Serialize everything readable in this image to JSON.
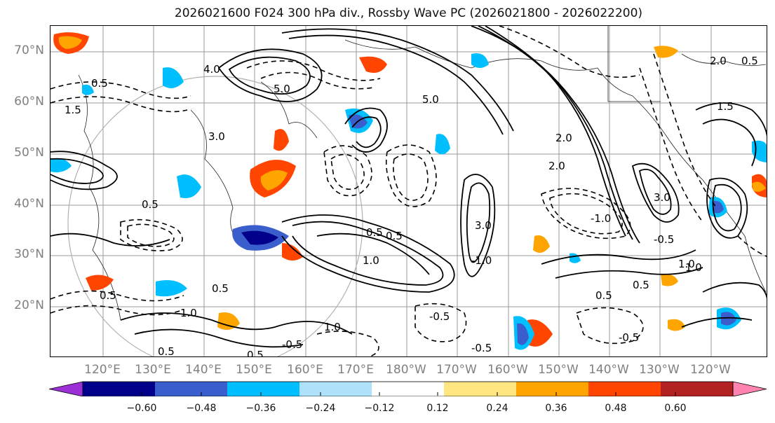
{
  "title": "2026021600 F024 300 hPa div., Rossby Wave PC (2026021800 - 2026022200)",
  "lat_labels": [
    "70°N",
    "60°N",
    "50°N",
    "40°N",
    "30°N",
    "20°N"
  ],
  "lon_labels": [
    "120°E",
    "130°E",
    "140°E",
    "150°E",
    "160°E",
    "170°E",
    "180°W",
    "170°W",
    "160°W",
    "150°W",
    "140°W",
    "130°W",
    "120°W"
  ],
  "colorbar": {
    "ticks": [
      "−0.60",
      "−0.48",
      "−0.36",
      "−0.24",
      "−0.12",
      "0.12",
      "0.24",
      "0.36",
      "0.48",
      "0.60"
    ],
    "colors": [
      "#9b30d6",
      "#00008b",
      "#3a5fcd",
      "#00bfff",
      "#afe1fa",
      "#ffffff",
      "#ffe680",
      "#ffa500",
      "#ff4500",
      "#b22222",
      "#ff85b0"
    ]
  },
  "contour_labels": [
    "4.0",
    "5.0",
    "5.0",
    "3.0",
    "2.0",
    "2.0",
    "1.5",
    "0.5",
    "0.5",
    "0.5",
    "0.5",
    "0.5",
    "0.5",
    "1.0",
    "1.0",
    "1.0",
    "1.0",
    "0.5",
    "0.5",
    "0.5",
    "0.5",
    "-0.5",
    "-0.5",
    "-0.5",
    "-0.5",
    "-0.5",
    "-1.0",
    "-1.0",
    "3.0",
    "3.0",
    "2.0",
    "1.5",
    "1.0",
    "0.5"
  ]
}
